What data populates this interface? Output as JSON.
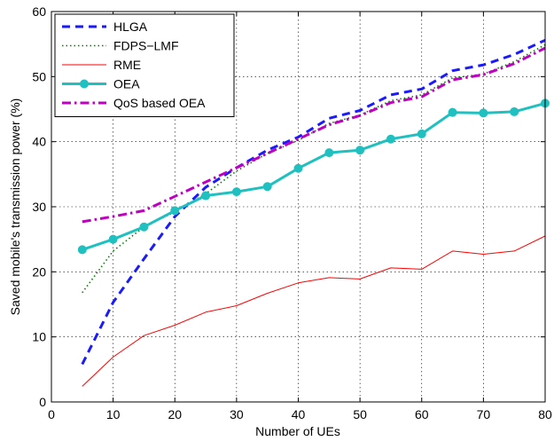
{
  "chart_data": {
    "type": "line",
    "title": "",
    "xlabel": "Number of UEs",
    "ylabel": "Saved mobile's transmission power (%)",
    "xlim": [
      0,
      80
    ],
    "ylim": [
      0,
      60
    ],
    "xticks": [
      0,
      10,
      20,
      30,
      40,
      50,
      60,
      70,
      80
    ],
    "yticks": [
      0,
      10,
      20,
      30,
      40,
      50,
      60
    ],
    "grid": true,
    "legend_position": "top-left",
    "x": [
      5,
      10,
      15,
      20,
      25,
      30,
      35,
      40,
      45,
      50,
      55,
      60,
      65,
      70,
      75,
      80
    ],
    "series": [
      {
        "name": "HLGA",
        "color": "#1a1aff",
        "line_style": "dashed",
        "marker": "none",
        "values": [
          5.8,
          15.3,
          22.0,
          28.5,
          33.0,
          36.0,
          38.7,
          40.7,
          43.6,
          44.8,
          47.2,
          48.1,
          50.9,
          51.8,
          53.4,
          55.6
        ]
      },
      {
        "name": "FDPS−LMF",
        "color": "#008000",
        "line_style": "dotted",
        "marker": "none",
        "values": [
          16.8,
          23.2,
          26.9,
          29.2,
          32.0,
          35.5,
          38.2,
          40.2,
          42.8,
          44.1,
          46.3,
          47.2,
          49.8,
          50.4,
          52.3,
          54.9
        ]
      },
      {
        "name": "RME",
        "color": "#ff0000",
        "line_style": "solid",
        "marker": "none",
        "values": [
          2.4,
          6.9,
          10.2,
          11.8,
          13.8,
          14.8,
          16.7,
          18.3,
          19.1,
          18.9,
          20.6,
          20.4,
          23.2,
          22.7,
          23.2,
          25.5
        ]
      },
      {
        "name": "OEA",
        "color": "#20c0c0",
        "line_style": "solid",
        "marker": "circle",
        "values": [
          23.4,
          25.0,
          26.9,
          29.4,
          31.7,
          32.3,
          33.1,
          35.9,
          38.3,
          38.7,
          40.4,
          41.2,
          44.5,
          44.4,
          44.6,
          45.9
        ]
      },
      {
        "name": "QoS based OEA",
        "color": "#c000c0",
        "line_style": "dashdot",
        "marker": "none",
        "values": [
          27.7,
          28.5,
          29.4,
          31.6,
          33.8,
          36.0,
          38.2,
          40.4,
          42.6,
          44.0,
          46.0,
          46.9,
          49.5,
          50.3,
          52.0,
          54.4
        ]
      }
    ]
  }
}
